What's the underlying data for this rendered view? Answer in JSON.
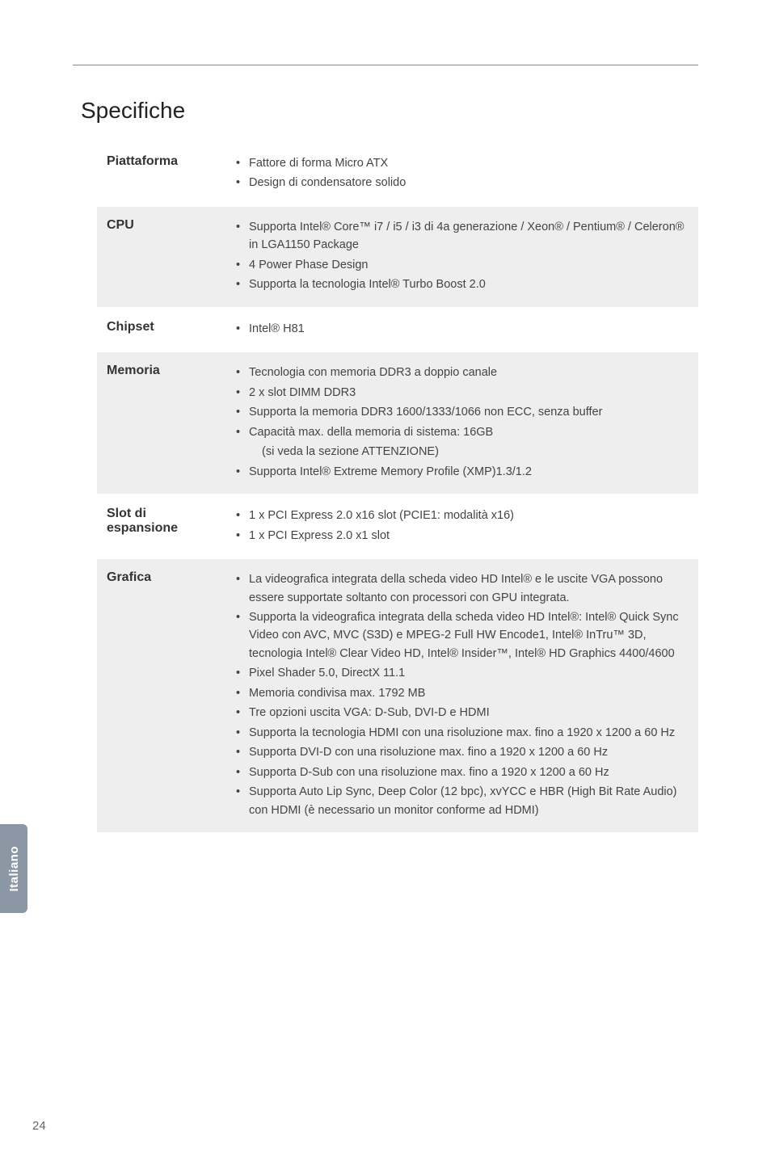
{
  "page": {
    "title": "Specifiche",
    "sideTab": "Italiano",
    "number": "24"
  },
  "rows": [
    {
      "label": "Piattaforma",
      "shade": false,
      "items": [
        "Fattore di forma Micro ATX",
        "Design di condensatore solido"
      ]
    },
    {
      "label": "CPU",
      "shade": true,
      "items": [
        "Supporta Intel® Core™  i7 / i5 / i3 di 4a generazione / Xeon® / Pentium® / Celeron® in LGA1150 Package",
        "4 Power Phase Design",
        "Supporta la tecnologia Intel® Turbo Boost 2.0"
      ]
    },
    {
      "label": "Chipset",
      "shade": false,
      "items": [
        "Intel® H81"
      ]
    },
    {
      "label": "Memoria",
      "shade": true,
      "items": [
        "Tecnologia con memoria DDR3 a doppio canale",
        "2 x slot DIMM DDR3",
        "Supporta la memoria DDR3 1600/1333/1066 non ECC, senza buffer",
        "Capacità max. della memoria di sistema: 16GB",
        "(si veda la sezione ATTENZIONE)",
        "Supporta Intel® Extreme Memory Profile (XMP)1.3/1.2"
      ],
      "subIdx": [
        4
      ]
    },
    {
      "label": "Slot di espansione",
      "shade": false,
      "items": [
        "1 x PCI Express 2.0 x16 slot (PCIE1: modalità x16)",
        "1 x PCI Express 2.0 x1 slot"
      ]
    },
    {
      "label": "Grafica",
      "shade": true,
      "items": [
        "La videografica integrata della scheda video HD Intel® e le uscite VGA possono essere supportate soltanto con processori con GPU integrata.",
        "Supporta la videografica integrata della scheda video HD Intel®: Intel® Quick Sync Video con AVC, MVC (S3D) e MPEG-2 Full HW Encode1, Intel® InTru™ 3D, tecnologia Intel® Clear Video HD, Intel® Insider™, Intel® HD Graphics 4400/4600",
        "Pixel Shader 5.0, DirectX 11.1",
        "Memoria condivisa max. 1792 MB",
        "Tre opzioni uscita VGA: D-Sub, DVI-D e HDMI",
        "Supporta la tecnologia HDMI con una risoluzione max. fino a 1920 x 1200 a 60 Hz",
        "Supporta DVI-D con una risoluzione max. fino a 1920 x 1200 a 60 Hz",
        "Supporta D-Sub con una risoluzione max. fino a 1920 x 1200 a 60 Hz",
        "Supporta Auto Lip Sync, Deep Color (12 bpc), xvYCC e HBR (High Bit Rate Audio) con HDMI (è necessario un monitor conforme ad HDMI)"
      ]
    }
  ]
}
